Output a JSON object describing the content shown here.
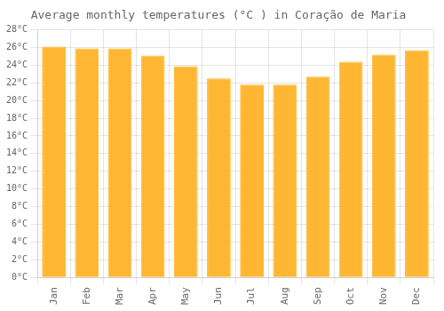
{
  "chart_data": {
    "type": "bar",
    "title": "Average monthly temperatures (°C ) in Coração de Maria",
    "categories": [
      "Jan",
      "Feb",
      "Mar",
      "Apr",
      "May",
      "Jun",
      "Jul",
      "Aug",
      "Sep",
      "Oct",
      "Nov",
      "Dec"
    ],
    "values": [
      26.1,
      25.9,
      25.9,
      25.1,
      23.9,
      22.5,
      21.8,
      21.8,
      22.7,
      24.4,
      25.2,
      25.7
    ],
    "color": "#FFB733",
    "ylim": [
      0,
      28
    ],
    "yticks": [
      {
        "value": 0,
        "label": "0°C"
      },
      {
        "value": 2,
        "label": "2°C"
      },
      {
        "value": 4,
        "label": "4°C"
      },
      {
        "value": 6,
        "label": "6°C"
      },
      {
        "value": 8,
        "label": "8°C"
      },
      {
        "value": 10,
        "label": "10°C"
      },
      {
        "value": 12,
        "label": "12°C"
      },
      {
        "value": 14,
        "label": "14°C"
      },
      {
        "value": 16,
        "label": "16°C"
      },
      {
        "value": 18,
        "label": "18°C"
      },
      {
        "value": 20,
        "label": "20°C"
      },
      {
        "value": 22,
        "label": "22°C"
      },
      {
        "value": 24,
        "label": "24°C"
      },
      {
        "value": 26,
        "label": "26°C"
      },
      {
        "value": 28,
        "label": "28°C"
      }
    ],
    "grid": true
  }
}
